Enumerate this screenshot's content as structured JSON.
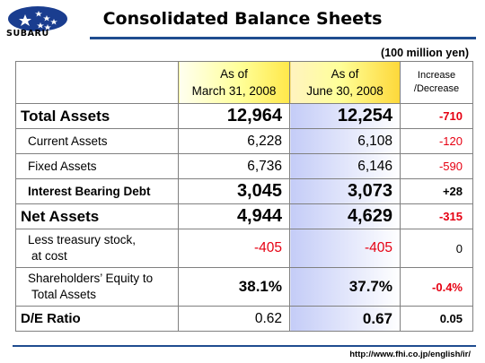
{
  "brand": {
    "logo_word": "SUBARU"
  },
  "title": "Consolidated Balance Sheets",
  "unit": "(100 million yen)",
  "columns": {
    "col1": {
      "line1": "As of",
      "line2": "March 31, 2008"
    },
    "col2": {
      "line1": "As of",
      "line2": "June 30, 2008"
    },
    "change": {
      "line1": "Increase",
      "line2": "/Decrease"
    }
  },
  "rows": [
    {
      "label": "Total Assets",
      "mar": "12,964",
      "jun": "12,254",
      "change": "-710"
    },
    {
      "label": "Current Assets",
      "mar": "6,228",
      "jun": "6,108",
      "change": "-120"
    },
    {
      "label": "Fixed Assets",
      "mar": "6,736",
      "jun": "6,146",
      "change": "-590"
    },
    {
      "label": "Interest Bearing Debt",
      "mar": "3,045",
      "jun": "3,073",
      "change": "+28"
    },
    {
      "label": "Net Assets",
      "mar": "4,944",
      "jun": "4,629",
      "change": "-315"
    },
    {
      "label_line1": "Less treasury stock,",
      "label_line2": "at cost",
      "mar": "-405",
      "jun": "-405",
      "change": "0"
    },
    {
      "label_line1": "Shareholders’ Equity to",
      "label_line2": "Total Assets",
      "mar": "38.1%",
      "jun": "37.7%",
      "change": "-0.4%"
    },
    {
      "label": "D/E Ratio",
      "mar": "0.62",
      "jun": "0.67",
      "change": "0.05"
    }
  ],
  "footer": {
    "url": "http://www.fhi.co.jp/english/ir/"
  },
  "colors": {
    "accent_blue": "#1f4c8f",
    "negative_red": "#e60012",
    "highlight_yellow": "#ffff99"
  }
}
